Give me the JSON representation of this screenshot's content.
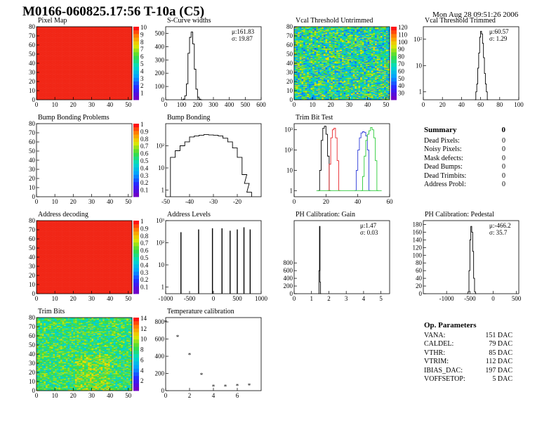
{
  "header": {
    "title": "M0166-060825.17:56 T-10a (C5)",
    "date": "Mon Aug 28 09:51:26 2006"
  },
  "summary": {
    "title": "Summary",
    "count": "0",
    "rows": [
      {
        "label": "Dead Pixels:",
        "value": "0"
      },
      {
        "label": "Noisy Pixels:",
        "value": "0"
      },
      {
        "label": "Mask defects:",
        "value": "0"
      },
      {
        "label": "Dead Bumps:",
        "value": "0"
      },
      {
        "label": "Dead Trimbits:",
        "value": "0"
      },
      {
        "label": "Address Probl:",
        "value": "0"
      }
    ]
  },
  "op_params": {
    "title": "Op. Parameters",
    "rows": [
      {
        "label": "VANA:",
        "value": "151 DAC"
      },
      {
        "label": "CALDEL:",
        "value": "79 DAC"
      },
      {
        "label": "VTHR:",
        "value": "85 DAC"
      },
      {
        "label": "VTRIM:",
        "value": "112 DAC"
      },
      {
        "label": "IBIAS_DAC:",
        "value": "197 DAC"
      },
      {
        "label": "VOFFSETOP:",
        "value": "5 DAC"
      }
    ]
  },
  "chart_data": [
    {
      "id": "pixel_map",
      "type": "heatmap",
      "title": "Pixel Map",
      "xlim": [
        0,
        52
      ],
      "ylim": [
        0,
        80
      ],
      "xticks": [
        "0",
        "10",
        "20",
        "30",
        "40",
        "50"
      ],
      "yticks": [
        "0",
        "10",
        "20",
        "30",
        "40",
        "50",
        "60",
        "70",
        "80"
      ],
      "pattern": "uniform",
      "zticks": [
        "10",
        "9",
        "8",
        "7",
        "6",
        "5",
        "4",
        "3",
        "2",
        "1"
      ]
    },
    {
      "id": "scurve_widths",
      "type": "bar",
      "title": "S-Curve widths",
      "xlim": [
        0,
        600
      ],
      "ylim": [
        0,
        550
      ],
      "xticks": [
        "0",
        "100",
        "200",
        "300",
        "400",
        "500",
        "600"
      ],
      "yticks": [
        "0",
        "100",
        "200",
        "300",
        "400",
        "500"
      ],
      "stats": [
        "μ:161.83",
        "σ: 19.87"
      ],
      "x": [
        100,
        110,
        120,
        130,
        140,
        150,
        160,
        170,
        180,
        190,
        200,
        210,
        220
      ],
      "values": [
        0,
        5,
        30,
        120,
        350,
        470,
        510,
        420,
        230,
        80,
        20,
        5,
        0
      ]
    },
    {
      "id": "vcal_untrimmed",
      "type": "heatmap",
      "title": "Vcal Threshold Untrimmed",
      "xlim": [
        0,
        52
      ],
      "ylim": [
        0,
        80
      ],
      "xticks": [
        "0",
        "10",
        "20",
        "30",
        "40",
        "50"
      ],
      "yticks": [
        "0",
        "10",
        "20",
        "30",
        "40",
        "50",
        "60",
        "70",
        "80"
      ],
      "pattern": "noise",
      "zticks": [
        "120",
        "110",
        "100",
        "90",
        "80",
        "70",
        "60",
        "50",
        "40",
        "30"
      ]
    },
    {
      "id": "vcal_trimmed",
      "type": "bar",
      "title": "Vcal Threshold Trimmed",
      "xlim": [
        0,
        100
      ],
      "log": true,
      "ylim": [
        0.5,
        300
      ],
      "xticks": [
        "0",
        "20",
        "40",
        "60",
        "80",
        "100"
      ],
      "yticks": [
        "1",
        "10",
        "10²"
      ],
      "stats": [
        "μ:60.57",
        "σ: 1.29"
      ],
      "x": [
        54,
        55,
        56,
        57,
        58,
        59,
        60,
        61,
        62,
        63,
        64,
        65,
        66,
        67
      ],
      "values": [
        0.5,
        1,
        2,
        8,
        30,
        120,
        200,
        160,
        70,
        20,
        5,
        2,
        1,
        0.5
      ]
    },
    {
      "id": "bump_problems",
      "type": "heatmap",
      "title": "Bump Bonding Problems",
      "xlim": [
        0,
        52
      ],
      "ylim": [
        0,
        80
      ],
      "xticks": [
        "0",
        "10",
        "20",
        "30",
        "40",
        "50"
      ],
      "yticks": [
        "0",
        "10",
        "20",
        "30",
        "40",
        "50",
        "60",
        "70",
        "80"
      ],
      "pattern": "empty",
      "zticks": [
        "1",
        "0.9",
        "0.8",
        "0.7",
        "0.6",
        "0.5",
        "0.4",
        "0.3",
        "0.2",
        "0.1"
      ]
    },
    {
      "id": "bump_bonding",
      "type": "bar",
      "title": "Bump Bonding",
      "xlim": [
        -50,
        -10
      ],
      "log": true,
      "ylim": [
        0.5,
        1000
      ],
      "xticks": [
        "-50",
        "-40",
        "-30",
        "-20"
      ],
      "yticks": [
        "1",
        "10",
        "10²"
      ],
      "x": [
        -48,
        -46,
        -44,
        -42,
        -40,
        -38,
        -36,
        -34,
        -32,
        -30,
        -28,
        -26,
        -24,
        -22,
        -20,
        -18,
        -17,
        -16
      ],
      "values": [
        30,
        60,
        100,
        150,
        250,
        280,
        300,
        320,
        310,
        300,
        280,
        220,
        150,
        80,
        30,
        5,
        2,
        0.8
      ]
    },
    {
      "id": "trim_bit_test",
      "type": "line",
      "title": "Trim Bit Test",
      "xlim": [
        0,
        60
      ],
      "log": true,
      "ylim": [
        0.5,
        2000
      ],
      "xticks": [
        "0",
        "20",
        "40",
        "60"
      ],
      "yticks": [
        "1",
        "10",
        "10²",
        "10³"
      ],
      "series": [
        {
          "color": "#000000",
          "x": [
            15,
            16,
            17,
            18,
            19,
            20,
            21,
            22
          ],
          "values": [
            1,
            10,
            300,
            1200,
            1500,
            600,
            50,
            1
          ]
        },
        {
          "color": "#e8282c",
          "x": [
            21,
            22,
            23,
            24,
            25,
            26,
            27,
            28
          ],
          "values": [
            1,
            20,
            400,
            1000,
            1200,
            400,
            30,
            1
          ]
        },
        {
          "color": "#2a39d8",
          "x": [
            38,
            39,
            40,
            41,
            42,
            43,
            44,
            45,
            46,
            47
          ],
          "values": [
            1,
            10,
            100,
            400,
            700,
            800,
            750,
            500,
            100,
            1
          ]
        },
        {
          "color": "#2dcc3a",
          "x": [
            42,
            43,
            44,
            45,
            46,
            47,
            48,
            49,
            50,
            51,
            52
          ],
          "values": [
            1,
            5,
            50,
            300,
            600,
            900,
            1300,
            1000,
            400,
            30,
            1
          ]
        }
      ]
    },
    {
      "id": "address_decoding",
      "type": "heatmap",
      "title": "Address decoding",
      "xlim": [
        0,
        52
      ],
      "ylim": [
        0,
        80
      ],
      "xticks": [
        "0",
        "10",
        "20",
        "30",
        "40",
        "50"
      ],
      "yticks": [
        "0",
        "10",
        "20",
        "30",
        "40",
        "50",
        "60",
        "70",
        "80"
      ],
      "pattern": "uniform",
      "zticks": [
        "1",
        "0.9",
        "0.8",
        "0.7",
        "0.6",
        "0.5",
        "0.4",
        "0.3",
        "0.2",
        "0.1"
      ]
    },
    {
      "id": "address_levels",
      "type": "bar",
      "title": "Address Levels",
      "xlim": [
        -1000,
        1000
      ],
      "log": true,
      "ylim": [
        0.5,
        1000
      ],
      "xticks": [
        "-1000",
        "-500",
        "0",
        "500",
        "1000"
      ],
      "yticks": [
        "1",
        "10",
        "10²",
        "10³"
      ],
      "x": [
        -680,
        -310,
        -20,
        180,
        350,
        500,
        640,
        770
      ],
      "values": [
        300,
        400,
        450,
        450,
        350,
        400,
        500,
        400
      ]
    },
    {
      "id": "ph_gain",
      "type": "bar",
      "title": "PH Calibration: Gain",
      "xlim": [
        0,
        5.5
      ],
      "ylim": [
        0,
        1900
      ],
      "xticks": [
        "0",
        "1",
        "2",
        "3",
        "4",
        "5"
      ],
      "yticks": [
        "0",
        "200",
        "400",
        "600",
        "800"
      ],
      "stats": [
        "μ:1.47",
        "σ: 0.03"
      ],
      "x": [
        1.4,
        1.43,
        1.46,
        1.49,
        1.52
      ],
      "values": [
        0,
        600,
        1750,
        300,
        0
      ]
    },
    {
      "id": "ph_pedestal",
      "type": "bar",
      "title": "PH Calibration: Pedestal",
      "xlim": [
        -1500,
        550
      ],
      "ylim": [
        0,
        190
      ],
      "xticks": [
        "-1000",
        "-500",
        "0",
        "500"
      ],
      "yticks": [
        "0",
        "20",
        "40",
        "60",
        "80",
        "100",
        "120",
        "140",
        "160",
        "180"
      ],
      "stats": [
        "μ:-466.2",
        "σ: 35.7"
      ],
      "x": [
        -560,
        -540,
        -520,
        -500,
        -480,
        -460,
        -440,
        -420,
        -400,
        -380
      ],
      "values": [
        0,
        5,
        60,
        140,
        175,
        160,
        110,
        40,
        5,
        0
      ]
    },
    {
      "id": "trim_bits",
      "type": "heatmap",
      "title": "Trim Bits",
      "xlim": [
        0,
        52
      ],
      "ylim": [
        0,
        80
      ],
      "xticks": [
        "0",
        "10",
        "20",
        "30",
        "40",
        "50"
      ],
      "yticks": [
        "0",
        "10",
        "20",
        "30",
        "40",
        "50",
        "60",
        "70",
        "80"
      ],
      "pattern": "noise_green",
      "zticks": [
        "14",
        "12",
        "10",
        "8",
        "6",
        "4",
        "2"
      ]
    },
    {
      "id": "temp_calibration",
      "type": "scatter",
      "title": "Temperature calibration",
      "xlim": [
        0,
        8
      ],
      "ylim": [
        0,
        850
      ],
      "xticks": [
        "0",
        "2",
        "4",
        "6"
      ],
      "yticks": [
        "0",
        "200",
        "400",
        "600",
        "800"
      ],
      "x": [
        0,
        1,
        2,
        3,
        4,
        5,
        6,
        7
      ],
      "values": [
        800,
        630,
        420,
        190,
        55,
        55,
        60,
        65
      ]
    }
  ]
}
